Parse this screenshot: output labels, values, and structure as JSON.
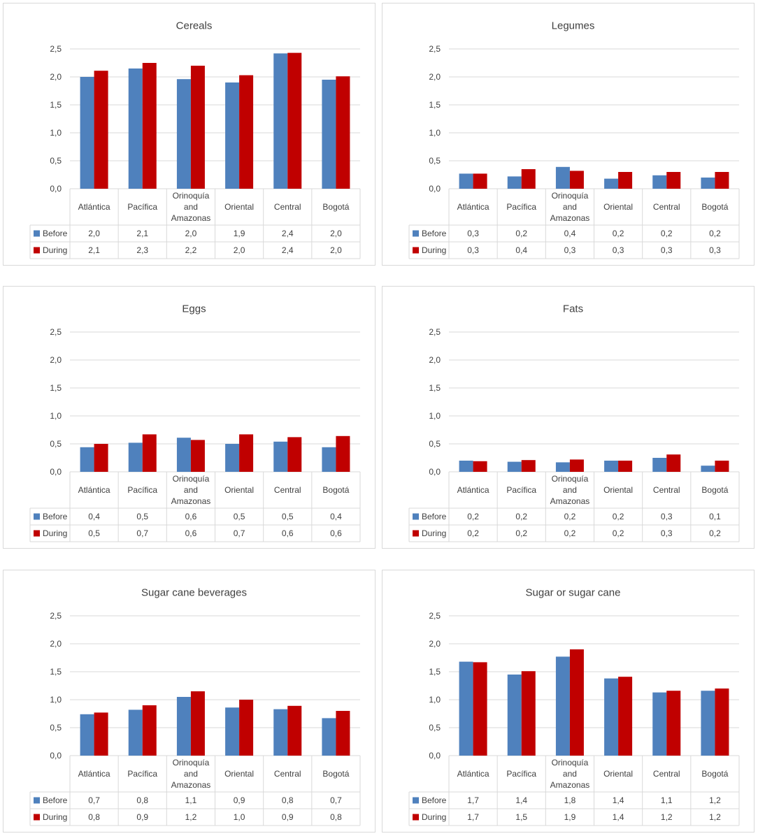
{
  "chart_data": [
    {
      "type": "bar",
      "title": "Cereals",
      "categories": [
        "Atlántica",
        "Pacífica",
        "Orinoquía and Amazonas",
        "Oriental",
        "Central",
        "Bogotá"
      ],
      "series": [
        {
          "name": "Before",
          "values": [
            2.0,
            2.15,
            1.96,
            1.9,
            2.42,
            1.95
          ],
          "labels": [
            "2,0",
            "2,1",
            "2,0",
            "1,9",
            "2,4",
            "2,0"
          ]
        },
        {
          "name": "During",
          "values": [
            2.11,
            2.25,
            2.2,
            2.03,
            2.43,
            2.01
          ],
          "labels": [
            "2,1",
            "2,3",
            "2,2",
            "2,0",
            "2,4",
            "2,0"
          ]
        }
      ],
      "yticks": [
        "0,0",
        "0,5",
        "1,0",
        "1,5",
        "2,0",
        "2,5"
      ],
      "ylim": [
        0,
        2.5
      ],
      "grid": true,
      "legend": "data-table"
    },
    {
      "type": "bar",
      "title": "Legumes",
      "categories": [
        "Atlántica",
        "Pacífica",
        "Orinoquía and Amazonas",
        "Oriental",
        "Central",
        "Bogotá"
      ],
      "series": [
        {
          "name": "Before",
          "values": [
            0.27,
            0.22,
            0.39,
            0.18,
            0.24,
            0.2
          ],
          "labels": [
            "0,3",
            "0,2",
            "0,4",
            "0,2",
            "0,2",
            "0,2"
          ]
        },
        {
          "name": "During",
          "values": [
            0.27,
            0.35,
            0.32,
            0.3,
            0.3,
            0.3
          ],
          "labels": [
            "0,3",
            "0,4",
            "0,3",
            "0,3",
            "0,3",
            "0,3"
          ]
        }
      ],
      "yticks": [
        "0,0",
        "0,5",
        "1,0",
        "1,5",
        "2,0",
        "2,5"
      ],
      "ylim": [
        0,
        2.5
      ],
      "grid": true,
      "legend": "data-table"
    },
    {
      "type": "bar",
      "title": "Eggs",
      "categories": [
        "Atlántica",
        "Pacífica",
        "Orinoquía and Amazonas",
        "Oriental",
        "Central",
        "Bogotá"
      ],
      "series": [
        {
          "name": "Before",
          "values": [
            0.44,
            0.52,
            0.61,
            0.5,
            0.54,
            0.44
          ],
          "labels": [
            "0,4",
            "0,5",
            "0,6",
            "0,5",
            "0,5",
            "0,4"
          ]
        },
        {
          "name": "During",
          "values": [
            0.5,
            0.67,
            0.57,
            0.67,
            0.62,
            0.64
          ],
          "labels": [
            "0,5",
            "0,7",
            "0,6",
            "0,7",
            "0,6",
            "0,6"
          ]
        }
      ],
      "yticks": [
        "0,0",
        "0,5",
        "1,0",
        "1,5",
        "2,0",
        "2,5"
      ],
      "ylim": [
        0,
        2.5
      ],
      "grid": true,
      "legend": "data-table"
    },
    {
      "type": "bar",
      "title": "Fats",
      "categories": [
        "Atlántica",
        "Pacífica",
        "Orinoquía and Amazonas",
        "Oriental",
        "Central",
        "Bogotá"
      ],
      "series": [
        {
          "name": "Before",
          "values": [
            0.2,
            0.18,
            0.17,
            0.2,
            0.25,
            0.11
          ],
          "labels": [
            "0,2",
            "0,2",
            "0,2",
            "0,2",
            "0,3",
            "0,1"
          ]
        },
        {
          "name": "During",
          "values": [
            0.19,
            0.21,
            0.22,
            0.2,
            0.31,
            0.2
          ],
          "labels": [
            "0,2",
            "0,2",
            "0,2",
            "0,2",
            "0,3",
            "0,2"
          ]
        }
      ],
      "yticks": [
        "0,0",
        "0,5",
        "1,0",
        "1,5",
        "2,0",
        "2,5"
      ],
      "ylim": [
        0,
        2.5
      ],
      "grid": true,
      "legend": "data-table"
    },
    {
      "type": "bar",
      "title": "Sugar cane beverages",
      "categories": [
        "Atlántica",
        "Pacífica",
        "Orinoquía and Amazonas",
        "Oriental",
        "Central",
        "Bogotá"
      ],
      "series": [
        {
          "name": "Before",
          "values": [
            0.74,
            0.82,
            1.05,
            0.86,
            0.83,
            0.67
          ],
          "labels": [
            "0,7",
            "0,8",
            "1,1",
            "0,9",
            "0,8",
            "0,7"
          ]
        },
        {
          "name": "During",
          "values": [
            0.77,
            0.9,
            1.15,
            1.0,
            0.89,
            0.8
          ],
          "labels": [
            "0,8",
            "0,9",
            "1,2",
            "1,0",
            "0,9",
            "0,8"
          ]
        }
      ],
      "yticks": [
        "0,0",
        "0,5",
        "1,0",
        "1,5",
        "2,0",
        "2,5"
      ],
      "ylim": [
        0,
        2.5
      ],
      "grid": true,
      "legend": "data-table"
    },
    {
      "type": "bar",
      "title": "Sugar or sugar cane",
      "categories": [
        "Atlántica",
        "Pacífica",
        "Orinoquía and Amazonas",
        "Oriental",
        "Central",
        "Bogotá"
      ],
      "series": [
        {
          "name": "Before",
          "values": [
            1.68,
            1.45,
            1.77,
            1.38,
            1.13,
            1.16
          ],
          "labels": [
            "1,7",
            "1,4",
            "1,8",
            "1,4",
            "1,1",
            "1,2"
          ]
        },
        {
          "name": "During",
          "values": [
            1.67,
            1.51,
            1.9,
            1.41,
            1.16,
            1.2
          ],
          "labels": [
            "1,7",
            "1,5",
            "1,9",
            "1,4",
            "1,2",
            "1,2"
          ]
        }
      ],
      "yticks": [
        "0,0",
        "0,5",
        "1,0",
        "1,5",
        "2,0",
        "2,5"
      ],
      "ylim": [
        0,
        2.5
      ],
      "grid": true,
      "legend": "data-table"
    }
  ],
  "colors": {
    "Before": "#4f81bd",
    "During": "#c00000",
    "grid": "#d9d9d9",
    "border": "#d9d9d9",
    "text": "#404040"
  }
}
